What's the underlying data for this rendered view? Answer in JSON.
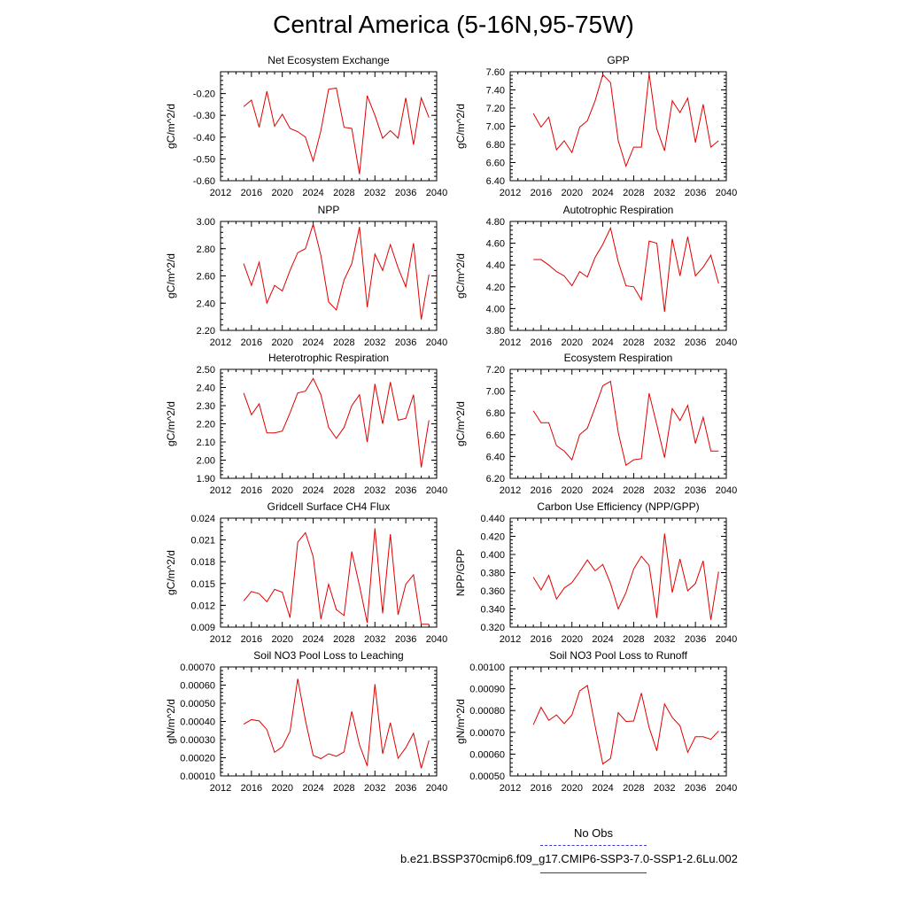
{
  "title": "Central America (5-16N,95-75W)",
  "legend": {
    "no_obs": "No Obs",
    "run": "b.e21.BSSP370cmip6.f09_g17.CMIP6-SSP3-7.0-SSP1-2.6Lu.002",
    "no_obs_color": "#3a3ad0",
    "run_color": "#e00000"
  },
  "chart_data": [
    {
      "type": "line",
      "title": "Net Ecosystem Exchange",
      "ylabel": "gC/m^2/d",
      "xlim": [
        2012,
        2040
      ],
      "ylim": [
        -0.6,
        -0.1
      ],
      "xticks": [
        "2012",
        "2016",
        "2020",
        "2024",
        "2028",
        "2032",
        "2036",
        "2040"
      ],
      "yticks": [
        "-0.60",
        "-0.50",
        "-0.40",
        "-0.30",
        "-0.20"
      ],
      "x": [
        2015,
        2016,
        2017,
        2018,
        2019,
        2020,
        2021,
        2022,
        2023,
        2024,
        2025,
        2026,
        2027,
        2028,
        2029,
        2030,
        2031,
        2032,
        2033,
        2034,
        2035,
        2036,
        2037,
        2038,
        2039
      ],
      "series": [
        {
          "values": [
            -0.26,
            -0.23,
            -0.355,
            -0.19,
            -0.35,
            -0.295,
            -0.36,
            -0.375,
            -0.4,
            -0.51,
            -0.37,
            -0.18,
            -0.175,
            -0.355,
            -0.36,
            -0.57,
            -0.21,
            -0.3,
            -0.405,
            -0.37,
            -0.405,
            -0.22,
            -0.435,
            -0.22,
            -0.31
          ],
          "color": "#e00000"
        }
      ]
    },
    {
      "type": "line",
      "title": "GPP",
      "ylabel": "gC/m^2/d",
      "xlim": [
        2012,
        2040
      ],
      "ylim": [
        6.4,
        7.6
      ],
      "xticks": [
        "2012",
        "2016",
        "2020",
        "2024",
        "2028",
        "2032",
        "2036",
        "2040"
      ],
      "yticks": [
        "6.40",
        "6.60",
        "6.80",
        "7.00",
        "7.20",
        "7.40",
        "7.60"
      ],
      "x": [
        2015,
        2016,
        2017,
        2018,
        2019,
        2020,
        2021,
        2022,
        2023,
        2024,
        2025,
        2026,
        2027,
        2028,
        2029,
        2030,
        2031,
        2032,
        2033,
        2034,
        2035,
        2036,
        2037,
        2038,
        2039
      ],
      "series": [
        {
          "values": [
            7.14,
            6.99,
            7.1,
            6.74,
            6.84,
            6.71,
            6.99,
            7.06,
            7.28,
            7.57,
            7.48,
            6.84,
            6.56,
            6.77,
            6.77,
            7.58,
            6.97,
            6.73,
            7.28,
            7.15,
            7.31,
            6.82,
            7.24,
            6.77,
            6.84
          ],
          "color": "#e00000"
        }
      ]
    },
    {
      "type": "line",
      "title": "NPP",
      "ylabel": "gC/m^2/d",
      "xlim": [
        2012,
        2040
      ],
      "ylim": [
        2.2,
        3.0
      ],
      "xticks": [
        "2012",
        "2016",
        "2020",
        "2024",
        "2028",
        "2032",
        "2036",
        "2040"
      ],
      "yticks": [
        "2.20",
        "2.40",
        "2.60",
        "2.80",
        "3.00"
      ],
      "x": [
        2015,
        2016,
        2017,
        2018,
        2019,
        2020,
        2021,
        2022,
        2023,
        2024,
        2025,
        2026,
        2027,
        2028,
        2029,
        2030,
        2031,
        2032,
        2033,
        2034,
        2035,
        2036,
        2037,
        2038,
        2039
      ],
      "series": [
        {
          "values": [
            2.69,
            2.53,
            2.7,
            2.4,
            2.53,
            2.49,
            2.64,
            2.77,
            2.8,
            2.98,
            2.75,
            2.41,
            2.35,
            2.57,
            2.69,
            2.96,
            2.37,
            2.76,
            2.64,
            2.83,
            2.66,
            2.52,
            2.84,
            2.28,
            2.61
          ],
          "color": "#e00000"
        }
      ]
    },
    {
      "type": "line",
      "title": "Autotrophic Respiration",
      "ylabel": "gC/m^2/d",
      "xlim": [
        2012,
        2040
      ],
      "ylim": [
        3.8,
        4.8
      ],
      "xticks": [
        "2012",
        "2016",
        "2020",
        "2024",
        "2028",
        "2032",
        "2036",
        "2040"
      ],
      "yticks": [
        "3.80",
        "4.00",
        "4.20",
        "4.40",
        "4.60",
        "4.80"
      ],
      "x": [
        2015,
        2016,
        2017,
        2018,
        2019,
        2020,
        2021,
        2022,
        2023,
        2024,
        2025,
        2026,
        2027,
        2028,
        2029,
        2030,
        2031,
        2032,
        2033,
        2034,
        2035,
        2036,
        2037,
        2038,
        2039
      ],
      "series": [
        {
          "values": [
            4.45,
            4.45,
            4.4,
            4.34,
            4.3,
            4.21,
            4.34,
            4.29,
            4.47,
            4.59,
            4.74,
            4.43,
            4.21,
            4.2,
            4.08,
            4.62,
            4.6,
            3.97,
            4.64,
            4.3,
            4.66,
            4.3,
            4.38,
            4.49,
            4.23
          ],
          "color": "#e00000"
        }
      ]
    },
    {
      "type": "line",
      "title": "Heterotrophic Respiration",
      "ylabel": "gC/m^2/d",
      "xlim": [
        2012,
        2040
      ],
      "ylim": [
        1.9,
        2.5
      ],
      "xticks": [
        "2012",
        "2016",
        "2020",
        "2024",
        "2028",
        "2032",
        "2036",
        "2040"
      ],
      "yticks": [
        "1.90",
        "2.00",
        "2.10",
        "2.20",
        "2.30",
        "2.40",
        "2.50"
      ],
      "x": [
        2015,
        2016,
        2017,
        2018,
        2019,
        2020,
        2021,
        2022,
        2023,
        2024,
        2025,
        2026,
        2027,
        2028,
        2029,
        2030,
        2031,
        2032,
        2033,
        2034,
        2035,
        2036,
        2037,
        2038,
        2039
      ],
      "series": [
        {
          "values": [
            2.37,
            2.25,
            2.31,
            2.15,
            2.15,
            2.16,
            2.26,
            2.37,
            2.38,
            2.45,
            2.36,
            2.18,
            2.12,
            2.18,
            2.3,
            2.36,
            2.1,
            2.42,
            2.2,
            2.43,
            2.22,
            2.23,
            2.36,
            1.96,
            2.22
          ],
          "color": "#e00000"
        }
      ]
    },
    {
      "type": "line",
      "title": "Ecosystem Respiration",
      "ylabel": "gC/m^2/d",
      "xlim": [
        2012,
        2040
      ],
      "ylim": [
        6.2,
        7.2
      ],
      "xticks": [
        "2012",
        "2016",
        "2020",
        "2024",
        "2028",
        "2032",
        "2036",
        "2040"
      ],
      "yticks": [
        "6.20",
        "6.40",
        "6.60",
        "6.80",
        "7.00",
        "7.20"
      ],
      "x": [
        2015,
        2016,
        2017,
        2018,
        2019,
        2020,
        2021,
        2022,
        2023,
        2024,
        2025,
        2026,
        2027,
        2028,
        2029,
        2030,
        2031,
        2032,
        2033,
        2034,
        2035,
        2036,
        2037,
        2038,
        2039
      ],
      "series": [
        {
          "values": [
            6.82,
            6.71,
            6.71,
            6.5,
            6.45,
            6.37,
            6.6,
            6.66,
            6.85,
            7.05,
            7.09,
            6.62,
            6.32,
            6.37,
            6.38,
            6.98,
            6.69,
            6.39,
            6.84,
            6.73,
            6.87,
            6.52,
            6.76,
            6.45,
            6.45
          ],
          "color": "#e00000"
        }
      ]
    },
    {
      "type": "line",
      "title": "Gridcell Surface CH4 Flux",
      "ylabel": "gC/m^2/d",
      "xlim": [
        2012,
        2040
      ],
      "ylim": [
        0.009,
        0.024
      ],
      "xticks": [
        "2012",
        "2016",
        "2020",
        "2024",
        "2028",
        "2032",
        "2036",
        "2040"
      ],
      "yticks": [
        "0.009",
        "0.012",
        "0.015",
        "0.018",
        "0.021",
        "0.024"
      ],
      "x": [
        2015,
        2016,
        2017,
        2018,
        2019,
        2020,
        2021,
        2022,
        2023,
        2024,
        2025,
        2026,
        2027,
        2028,
        2029,
        2030,
        2031,
        2032,
        2033,
        2034,
        2035,
        2036,
        2037,
        2038,
        2039
      ],
      "series": [
        {
          "values": [
            0.0126,
            0.0139,
            0.0136,
            0.0125,
            0.0142,
            0.0138,
            0.0103,
            0.0207,
            0.022,
            0.0187,
            0.0101,
            0.0149,
            0.0114,
            0.0106,
            0.0194,
            0.0147,
            0.0096,
            0.0226,
            0.0109,
            0.0218,
            0.0107,
            0.0149,
            0.0162,
            0.0094,
            0.0094
          ],
          "color": "#e00000"
        }
      ]
    },
    {
      "type": "line",
      "title": "Carbon Use Efficiency (NPP/GPP)",
      "ylabel": "NPP/GPP",
      "xlim": [
        2012,
        2040
      ],
      "ylim": [
        0.32,
        0.44
      ],
      "xticks": [
        "2012",
        "2016",
        "2020",
        "2024",
        "2028",
        "2032",
        "2036",
        "2040"
      ],
      "yticks": [
        "0.320",
        "0.340",
        "0.360",
        "0.380",
        "0.400",
        "0.420",
        "0.440"
      ],
      "x": [
        2015,
        2016,
        2017,
        2018,
        2019,
        2020,
        2021,
        2022,
        2023,
        2024,
        2025,
        2026,
        2027,
        2028,
        2029,
        2030,
        2031,
        2032,
        2033,
        2034,
        2035,
        2036,
        2037,
        2038,
        2039
      ],
      "series": [
        {
          "values": [
            0.375,
            0.361,
            0.377,
            0.351,
            0.363,
            0.369,
            0.381,
            0.394,
            0.382,
            0.389,
            0.368,
            0.34,
            0.358,
            0.384,
            0.398,
            0.388,
            0.33,
            0.423,
            0.358,
            0.395,
            0.36,
            0.368,
            0.393,
            0.328,
            0.381
          ],
          "color": "#e00000"
        }
      ]
    },
    {
      "type": "line",
      "title": "Soil NO3 Pool Loss to Leaching",
      "ylabel": "gN/m^2/d",
      "xlim": [
        2012,
        2040
      ],
      "ylim": [
        0.0001,
        0.0007
      ],
      "xticks": [
        "2012",
        "2016",
        "2020",
        "2024",
        "2028",
        "2032",
        "2036",
        "2040"
      ],
      "yticks": [
        "0.00010",
        "0.00020",
        "0.00030",
        "0.00040",
        "0.00050",
        "0.00060",
        "0.00070"
      ],
      "x": [
        2015,
        2016,
        2017,
        2018,
        2019,
        2020,
        2021,
        2022,
        2023,
        2024,
        2025,
        2026,
        2027,
        2028,
        2029,
        2030,
        2031,
        2032,
        2033,
        2034,
        2035,
        2036,
        2037,
        2038,
        2039
      ],
      "series": [
        {
          "values": [
            0.000385,
            0.00041,
            0.000403,
            0.000355,
            0.00023,
            0.00026,
            0.000345,
            0.000635,
            0.000405,
            0.000213,
            0.000195,
            0.000222,
            0.000208,
            0.000232,
            0.000455,
            0.000272,
            0.000155,
            0.000605,
            0.000222,
            0.000393,
            0.000197,
            0.000255,
            0.000335,
            0.000142,
            0.000295
          ],
          "color": "#e00000"
        }
      ]
    },
    {
      "type": "line",
      "title": "Soil NO3 Pool Loss to Runoff",
      "ylabel": "gN/m^2/d",
      "xlim": [
        2012,
        2040
      ],
      "ylim": [
        0.0005,
        0.001
      ],
      "xticks": [
        "2012",
        "2016",
        "2020",
        "2024",
        "2028",
        "2032",
        "2036",
        "2040"
      ],
      "yticks": [
        "0.00050",
        "0.00060",
        "0.00070",
        "0.00080",
        "0.00090",
        "0.00100"
      ],
      "x": [
        2015,
        2016,
        2017,
        2018,
        2019,
        2020,
        2021,
        2022,
        2023,
        2024,
        2025,
        2026,
        2027,
        2028,
        2029,
        2030,
        2031,
        2032,
        2033,
        2034,
        2035,
        2036,
        2037,
        2038,
        2039
      ],
      "series": [
        {
          "values": [
            0.000735,
            0.000815,
            0.000755,
            0.00078,
            0.00074,
            0.00078,
            0.00089,
            0.000915,
            0.00073,
            0.000555,
            0.00058,
            0.00079,
            0.00075,
            0.000752,
            0.00088,
            0.000722,
            0.000615,
            0.00083,
            0.000768,
            0.00073,
            0.000608,
            0.00068,
            0.00068,
            0.000668,
            0.000706
          ],
          "color": "#e00000"
        }
      ]
    }
  ]
}
